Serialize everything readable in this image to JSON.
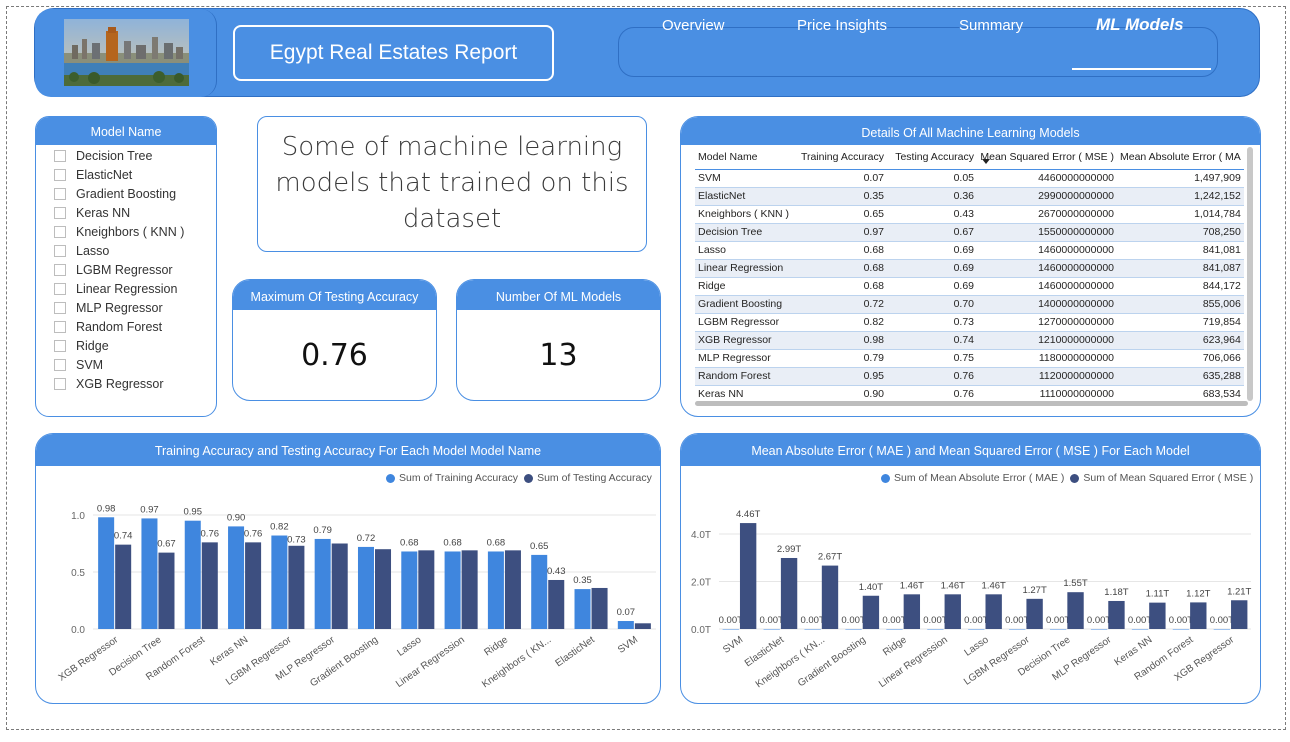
{
  "header": {
    "title": "Egypt Real Estates Report",
    "nav": [
      {
        "label": "Overview",
        "active": false
      },
      {
        "label": "Price Insights",
        "active": false
      },
      {
        "label": "Summary",
        "active": false
      },
      {
        "label": "ML Models",
        "active": true
      }
    ]
  },
  "slicer": {
    "title": "Model Name",
    "items": [
      "Decision Tree",
      "ElasticNet",
      "Gradient Boosting",
      "Keras NN",
      "Kneighbors ( KNN )",
      "Lasso",
      "LGBM Regressor",
      "Linear Regression",
      "MLP Regressor",
      "Random Forest",
      "Ridge",
      "SVM",
      "XGB Regressor"
    ]
  },
  "textbox": {
    "lines": [
      "Some of machine learning",
      "models that trained on this",
      "dataset"
    ]
  },
  "kpis": [
    {
      "title": "Maximum Of Testing Accuracy",
      "value": "0.76"
    },
    {
      "title": "Number Of ML Models",
      "value": "13"
    }
  ],
  "table": {
    "title": "Details Of All Machine Learning Models",
    "columns": [
      "Model Name",
      "Training Accuracy",
      "Testing Accuracy",
      "Mean Squared Error ( MSE )",
      "Mean Absolute Error ( MA"
    ],
    "rows": [
      [
        "SVM",
        "0.07",
        "0.05",
        "4460000000000",
        "1,497,909"
      ],
      [
        "ElasticNet",
        "0.35",
        "0.36",
        "2990000000000",
        "1,242,152"
      ],
      [
        "Kneighbors ( KNN )",
        "0.65",
        "0.43",
        "2670000000000",
        "1,014,784"
      ],
      [
        "Decision Tree",
        "0.97",
        "0.67",
        "1550000000000",
        "708,250"
      ],
      [
        "Lasso",
        "0.68",
        "0.69",
        "1460000000000",
        "841,081"
      ],
      [
        "Linear Regression",
        "0.68",
        "0.69",
        "1460000000000",
        "841,087"
      ],
      [
        "Ridge",
        "0.68",
        "0.69",
        "1460000000000",
        "844,172"
      ],
      [
        "Gradient Boosting",
        "0.72",
        "0.70",
        "1400000000000",
        "855,006"
      ],
      [
        "LGBM Regressor",
        "0.82",
        "0.73",
        "1270000000000",
        "719,854"
      ],
      [
        "XGB Regressor",
        "0.98",
        "0.74",
        "1210000000000",
        "623,964"
      ],
      [
        "MLP Regressor",
        "0.79",
        "0.75",
        "1180000000000",
        "706,066"
      ],
      [
        "Random Forest",
        "0.95",
        "0.76",
        "1120000000000",
        "635,288"
      ],
      [
        "Keras NN",
        "0.90",
        "0.76",
        "1110000000000",
        "683,534"
      ]
    ]
  },
  "colors": {
    "primary": "#4a8fe3",
    "light_series": "#3f86de",
    "dark_series": "#3d4f80"
  },
  "chart_data": [
    {
      "type": "bar",
      "title": "Training Accuracy and Testing Accuracy For Each Model Model Name",
      "categories": [
        "XGB Regressor",
        "Decision Tree",
        "Random Forest",
        "Keras NN",
        "LGBM Regressor",
        "MLP Regressor",
        "Gradient Boosting",
        "Lasso",
        "Linear Regression",
        "Ridge",
        "Kneighbors ( KN...",
        "ElasticNet",
        "SVM"
      ],
      "series": [
        {
          "name": "Sum of Training Accuracy",
          "values": [
            0.98,
            0.97,
            0.95,
            0.9,
            0.82,
            0.79,
            0.72,
            0.68,
            0.68,
            0.68,
            0.65,
            0.35,
            0.07
          ]
        },
        {
          "name": "Sum of Testing Accuracy",
          "values": [
            0.74,
            0.67,
            0.76,
            0.76,
            0.73,
            0.75,
            0.7,
            0.69,
            0.69,
            0.69,
            0.43,
            0.36,
            0.05
          ]
        }
      ],
      "labels_series1": [
        "0.98",
        "0.97",
        "0.95",
        "0.90",
        "0.82",
        "0.79",
        "0.72",
        "0.68",
        "0.68",
        "0.68",
        "0.65",
        "0.35",
        "0.07"
      ],
      "labels_series2": [
        "0.74",
        "0.67",
        "0.76",
        "0.76",
        "0.73",
        "",
        "",
        "",
        "",
        "",
        "0.43",
        "",
        ""
      ],
      "yticks": [
        "0.0",
        "0.5",
        "1.0"
      ],
      "ylim": [
        0,
        1.0
      ],
      "legend": "top-right",
      "grid": true
    },
    {
      "type": "bar",
      "title": "Mean Absolute Error ( MAE ) and Mean Squared Error ( MSE ) For Each Model",
      "categories": [
        "SVM",
        "ElasticNet",
        "Kneighbors ( KN...",
        "Gradient Boosting",
        "Ridge",
        "Linear Regression",
        "Lasso",
        "LGBM Regressor",
        "Decision Tree",
        "MLP Regressor",
        "Keras NN",
        "Random Forest",
        "XGB Regressor"
      ],
      "series": [
        {
          "name": "Sum of Mean Absolute Error ( MAE )",
          "values": [
            0,
            0,
            0,
            0,
            0,
            0,
            0,
            0,
            0,
            0,
            0,
            0,
            0
          ]
        },
        {
          "name": "Sum of Mean Squared Error ( MSE )",
          "values": [
            4.46,
            2.99,
            2.67,
            1.4,
            1.46,
            1.46,
            1.46,
            1.27,
            1.55,
            1.18,
            1.11,
            1.12,
            1.21
          ]
        }
      ],
      "labels_series1": [
        "0.00T",
        "0.00T",
        "0.00T",
        "0.00T",
        "0.00T",
        "0.00T",
        "0.00T",
        "0.00T",
        "0.00T",
        "0.00T",
        "0.00T",
        "0.00T",
        "0.00T"
      ],
      "labels_series2": [
        "4.46T",
        "2.99T",
        "2.67T",
        "1.40T",
        "1.46T",
        "1.46T",
        "1.46T",
        "1.27T",
        "1.55T",
        "1.18T",
        "1.11T",
        "1.12T",
        "1.21T"
      ],
      "yticks": [
        "0.0T",
        "2.0T",
        "4.0T"
      ],
      "ylim": [
        0,
        4.8
      ],
      "legend": "top-right",
      "grid": true
    }
  ]
}
